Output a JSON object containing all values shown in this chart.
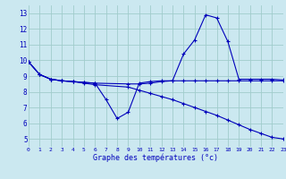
{
  "background_color": "#cbe8f0",
  "grid_color": "#a0cccc",
  "line_color": "#0000bb",
  "xlabel": "Graphe des températures (°c)",
  "xlim": [
    0,
    23
  ],
  "ylim": [
    4.5,
    13.5
  ],
  "yticks": [
    5,
    6,
    7,
    8,
    9,
    10,
    11,
    12,
    13
  ],
  "xticks": [
    0,
    1,
    2,
    3,
    4,
    5,
    6,
    7,
    8,
    9,
    10,
    11,
    12,
    13,
    14,
    15,
    16,
    17,
    18,
    19,
    20,
    21,
    22,
    23
  ],
  "series": [
    {
      "x": [
        0,
        1,
        2,
        3,
        4,
        5,
        6,
        7,
        8,
        9,
        10,
        11,
        12,
        13,
        14,
        15,
        16,
        17,
        18,
        19,
        20,
        21,
        22,
        23
      ],
      "y": [
        9.9,
        9.1,
        8.8,
        8.7,
        8.65,
        8.6,
        8.55,
        7.5,
        6.3,
        6.7,
        8.55,
        8.65,
        8.7,
        8.7,
        10.4,
        11.3,
        12.9,
        12.7,
        11.2,
        8.8,
        8.8,
        8.8,
        8.8,
        8.75
      ]
    },
    {
      "x": [
        0,
        1,
        2,
        3,
        4,
        5,
        6,
        9,
        10,
        11,
        12,
        13,
        14,
        15,
        16,
        17,
        18,
        19,
        20,
        21,
        22,
        23
      ],
      "y": [
        9.9,
        9.1,
        8.8,
        8.7,
        8.65,
        8.6,
        8.55,
        8.5,
        8.5,
        8.55,
        8.65,
        8.7,
        8.7,
        8.7,
        8.7,
        8.7,
        8.7,
        8.7,
        8.7,
        8.7,
        8.7,
        8.7
      ]
    },
    {
      "x": [
        0,
        1,
        2,
        3,
        4,
        5,
        6,
        9,
        10,
        11,
        12,
        13,
        14,
        15,
        16,
        17,
        18,
        19,
        20,
        21,
        22,
        23
      ],
      "y": [
        9.9,
        9.1,
        8.8,
        8.7,
        8.65,
        8.55,
        8.45,
        8.3,
        8.1,
        7.9,
        7.7,
        7.5,
        7.25,
        7.0,
        6.75,
        6.5,
        6.2,
        5.9,
        5.6,
        5.35,
        5.1,
        5.0
      ]
    }
  ]
}
